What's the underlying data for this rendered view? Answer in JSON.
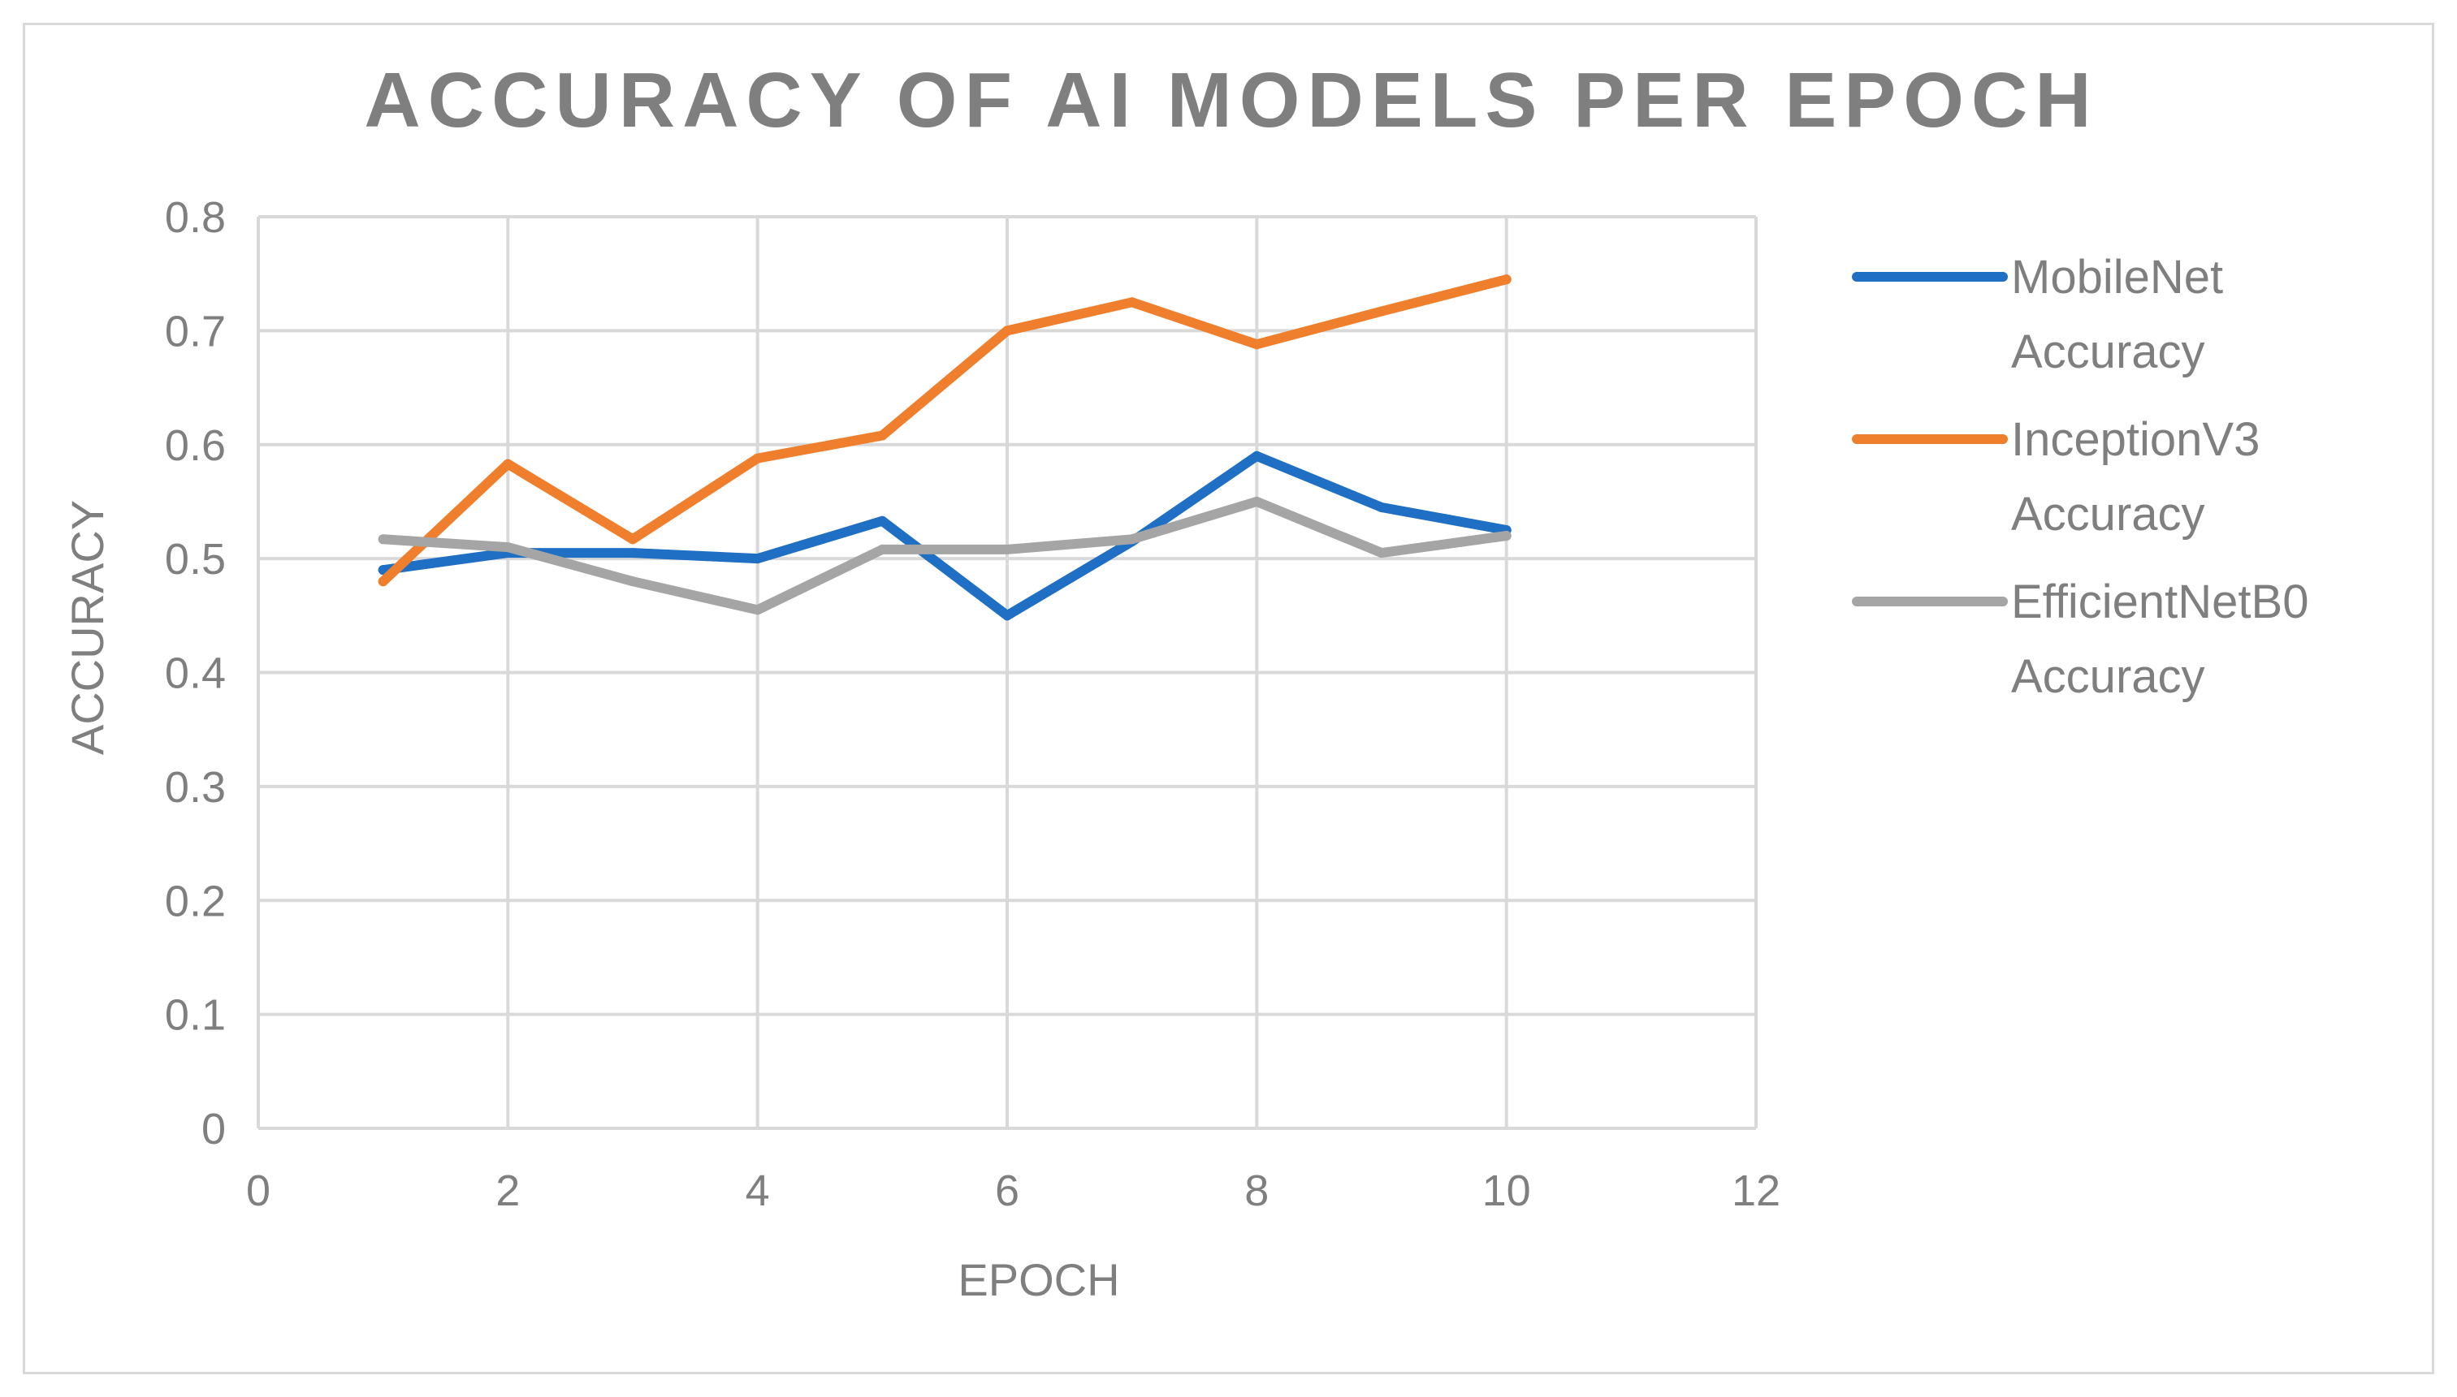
{
  "chart_data": {
    "type": "line",
    "title": "ACCURACY OF AI MODELS PER EPOCH",
    "xlabel": "EPOCH",
    "ylabel": "ACCURACY",
    "xlim": [
      0,
      12
    ],
    "ylim": [
      0,
      0.8
    ],
    "x_ticks": [
      "0",
      "2",
      "4",
      "6",
      "8",
      "10",
      "12"
    ],
    "y_ticks": [
      "0",
      "0.1",
      "0.2",
      "0.3",
      "0.4",
      "0.5",
      "0.6",
      "0.7",
      "0.8"
    ],
    "grid": true,
    "legend_position": "right",
    "x": [
      1,
      2,
      3,
      4,
      5,
      6,
      7,
      8,
      9,
      10
    ],
    "series": [
      {
        "name": "MobileNet Accuracy",
        "legend_lines": [
          "MobileNet",
          "Accuracy"
        ],
        "color": "#1f6fc4",
        "values": [
          0.49,
          0.505,
          0.505,
          0.5,
          0.533,
          0.45,
          0.515,
          0.59,
          0.545,
          0.525
        ]
      },
      {
        "name": "InceptionV3 Accuracy",
        "legend_lines": [
          "InceptionV3",
          "Accuracy"
        ],
        "color": "#f07f2d",
        "values": [
          0.48,
          0.583,
          0.517,
          0.588,
          0.608,
          0.7,
          0.725,
          0.688,
          0.717,
          0.745
        ]
      },
      {
        "name": "EfficientNetB0 Accuracy",
        "legend_lines": [
          "EfficientNetB0",
          "Accuracy"
        ],
        "color": "#a5a5a5",
        "values": [
          0.517,
          0.51,
          0.48,
          0.455,
          0.508,
          0.508,
          0.517,
          0.55,
          0.505,
          0.52
        ]
      }
    ]
  }
}
